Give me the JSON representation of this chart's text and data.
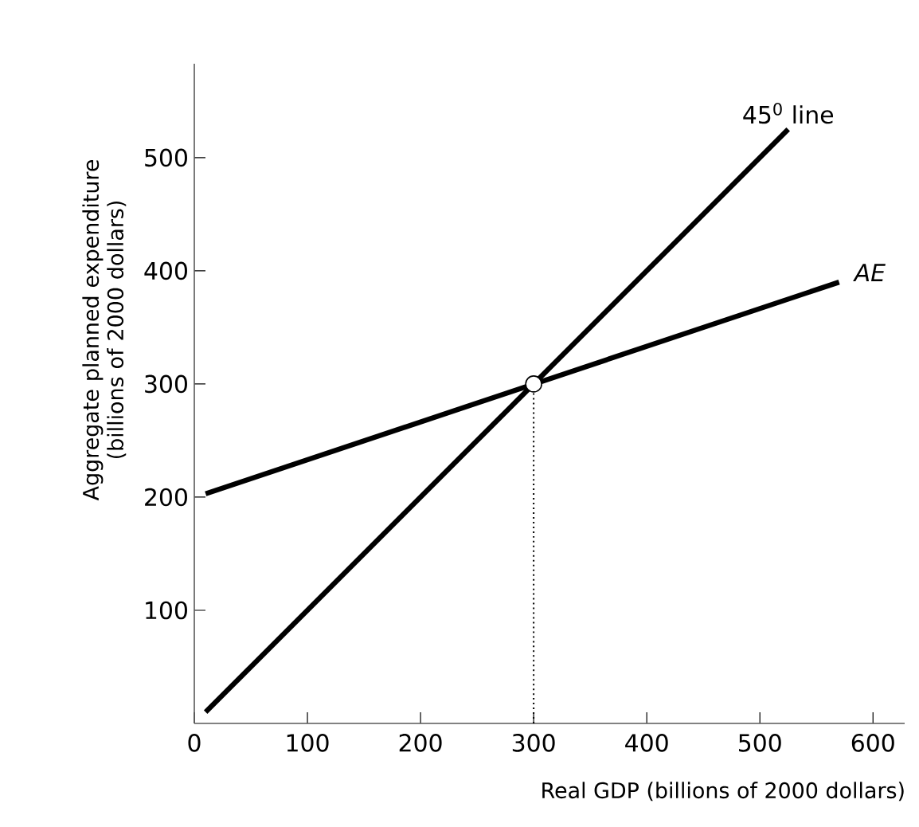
{
  "chart_data": {
    "type": "line",
    "xlabel": "Real GDP (billions of 2000 dollars)",
    "ylabel": "Aggregate planned expenditure (billions of 2000 dollars)",
    "xlim": [
      0,
      628
    ],
    "ylim": [
      0,
      583
    ],
    "xticks": [
      0,
      100,
      200,
      300,
      400,
      500,
      600
    ],
    "yticks": [
      100,
      200,
      300,
      400,
      500
    ],
    "grid": false,
    "series": [
      {
        "name": "45$^{0}$ line",
        "color": "#000000",
        "x": [
          10,
          525
        ],
        "values": [
          10,
          525
        ]
      },
      {
        "name": "AE",
        "color": "#000000",
        "x": [
          10,
          570
        ],
        "values": [
          203,
          390
        ]
      },
      {
        "type": "line",
        "color": "#000000",
        "line_style": "dotted",
        "x": [
          300,
          300
        ],
        "values": [
          0,
          300
        ]
      },
      {
        "type": "scatter",
        "color": "#ffffff",
        "marker": "circle",
        "x": [
          300
        ],
        "values": [
          300
        ]
      }
    ]
  }
}
